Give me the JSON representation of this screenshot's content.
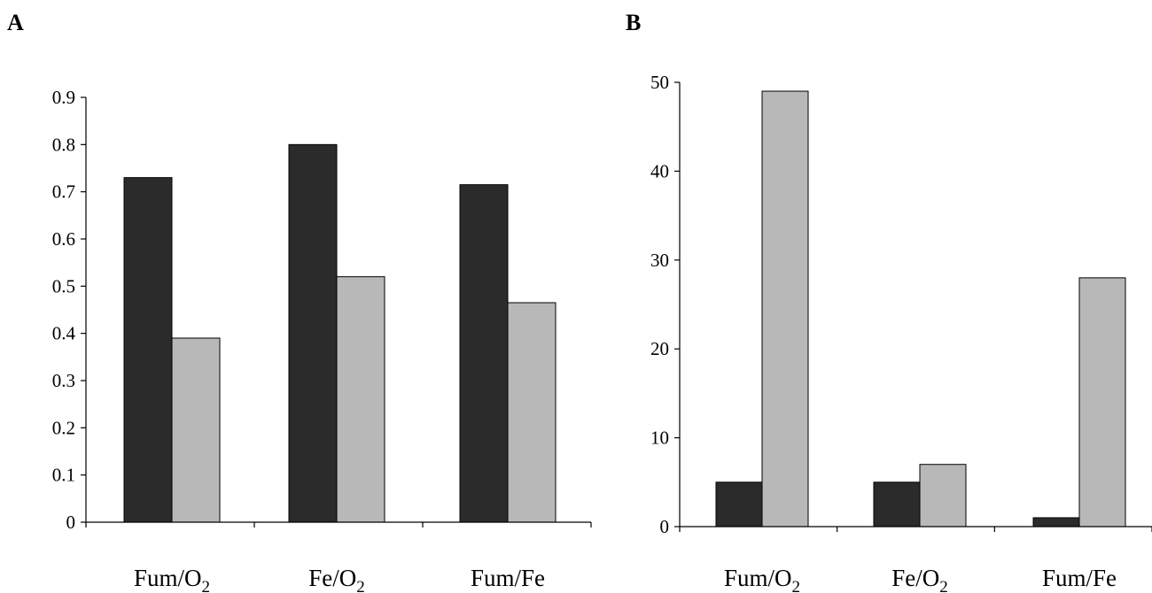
{
  "chart_data": [
    {
      "panel_label": "A",
      "type": "bar",
      "categories": [
        {
          "base": "Fum/O",
          "sub": "2"
        },
        {
          "base": "Fe/O",
          "sub": "2"
        },
        {
          "base": "Fum/Fe",
          "sub": ""
        }
      ],
      "series": [
        {
          "color": "#2b2b2b",
          "values": [
            0.73,
            0.8,
            0.715
          ]
        },
        {
          "color": "#b8b8b8",
          "values": [
            0.39,
            0.52,
            0.465
          ]
        }
      ],
      "ylim": [
        0,
        0.9
      ],
      "yticks": [
        "0",
        "0.1",
        "0.2",
        "0.3",
        "0.4",
        "0.5",
        "0.6",
        "0.7",
        "0.8",
        "0.9"
      ],
      "grid": false
    },
    {
      "panel_label": "B",
      "type": "bar",
      "categories": [
        {
          "base": "Fum/O",
          "sub": "2"
        },
        {
          "base": "Fe/O",
          "sub": "2"
        },
        {
          "base": "Fum/Fe",
          "sub": ""
        }
      ],
      "series": [
        {
          "color": "#2b2b2b",
          "values": [
            5,
            5,
            1
          ]
        },
        {
          "color": "#b8b8b8",
          "values": [
            49,
            7,
            28
          ]
        }
      ],
      "ylim": [
        0,
        50
      ],
      "yticks": [
        "0",
        "10",
        "20",
        "30",
        "40",
        "50"
      ],
      "grid": false
    }
  ]
}
